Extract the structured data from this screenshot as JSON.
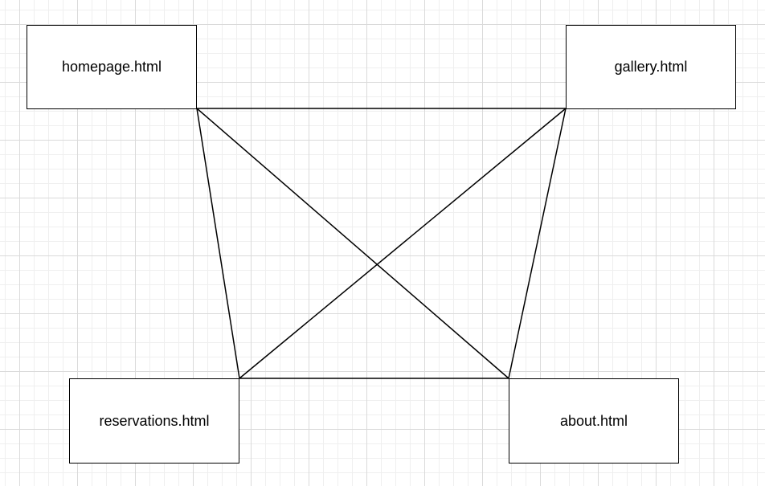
{
  "diagram": {
    "nodes": [
      {
        "id": "homepage",
        "label": "homepage.html"
      },
      {
        "id": "gallery",
        "label": "gallery.html"
      },
      {
        "id": "reservations",
        "label": "reservations.html"
      },
      {
        "id": "about",
        "label": "about.html"
      }
    ],
    "edges": [
      {
        "from": "homepage",
        "to": "gallery"
      },
      {
        "from": "homepage",
        "to": "reservations"
      },
      {
        "from": "homepage",
        "to": "about"
      },
      {
        "from": "gallery",
        "to": "reservations"
      },
      {
        "from": "gallery",
        "to": "about"
      },
      {
        "from": "reservations",
        "to": "about"
      }
    ],
    "colors": {
      "line": "#000000",
      "node_border": "#000000",
      "node_fill": "#ffffff",
      "grid": "#dadada"
    }
  }
}
